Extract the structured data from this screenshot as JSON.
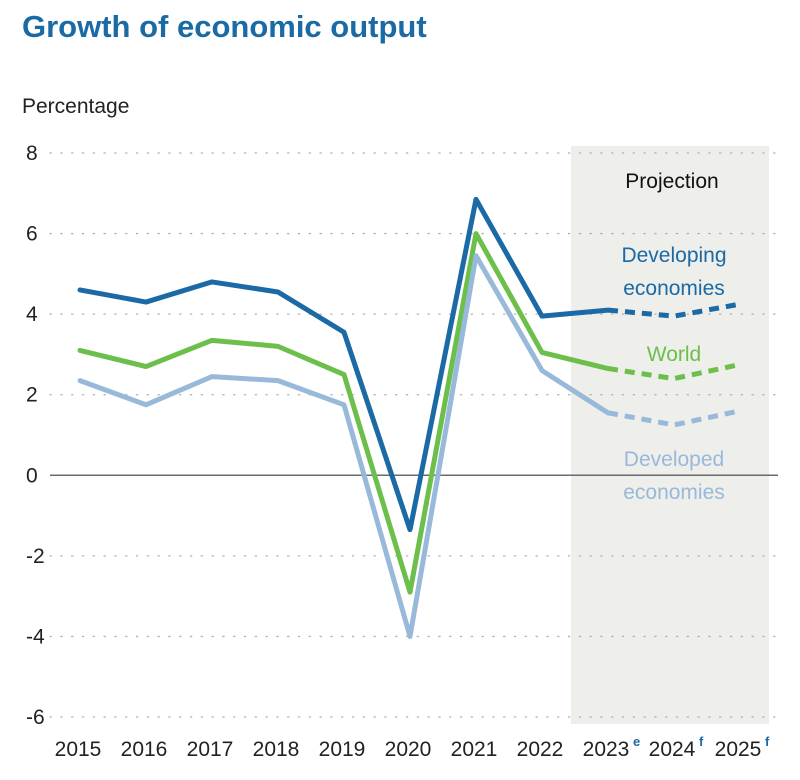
{
  "chart_data": {
    "type": "line",
    "title": "Growth of economic output",
    "ylabel": "Percentage",
    "xlabel": "",
    "ylim": [
      -6,
      8
    ],
    "yticks": [
      8,
      6,
      4,
      2,
      0,
      -2,
      -4,
      -6
    ],
    "categories": [
      "2015",
      "2016",
      "2017",
      "2018",
      "2019",
      "2020",
      "2021",
      "2022",
      "2023",
      "2024",
      "2025"
    ],
    "category_superscripts": [
      "",
      "",
      "",
      "",
      "",
      "",
      "",
      "",
      "e",
      "f",
      "f"
    ],
    "projection": {
      "label": "Projection",
      "from_index": 7.5,
      "to_index": 10.5
    },
    "projection_start_index": 8,
    "series": [
      {
        "name": "Developing economies",
        "label_lines": [
          "Developing",
          "economies"
        ],
        "color": "#1b6aa5",
        "values": [
          4.6,
          4.3,
          4.8,
          4.55,
          3.55,
          -1.35,
          6.85,
          3.95,
          4.1,
          3.95,
          4.25
        ]
      },
      {
        "name": "World",
        "label_lines": [
          "World"
        ],
        "color": "#6dbf4b",
        "values": [
          3.1,
          2.7,
          3.35,
          3.2,
          2.5,
          -2.9,
          6.0,
          3.05,
          2.65,
          2.4,
          2.75
        ]
      },
      {
        "name": "Developed economies",
        "label_lines": [
          "Developed",
          "economies"
        ],
        "color": "#98b9da",
        "values": [
          2.35,
          1.75,
          2.45,
          2.35,
          1.75,
          -4.0,
          5.45,
          2.6,
          1.55,
          1.25,
          1.6
        ]
      }
    ],
    "grid": true,
    "legend": "inline"
  }
}
